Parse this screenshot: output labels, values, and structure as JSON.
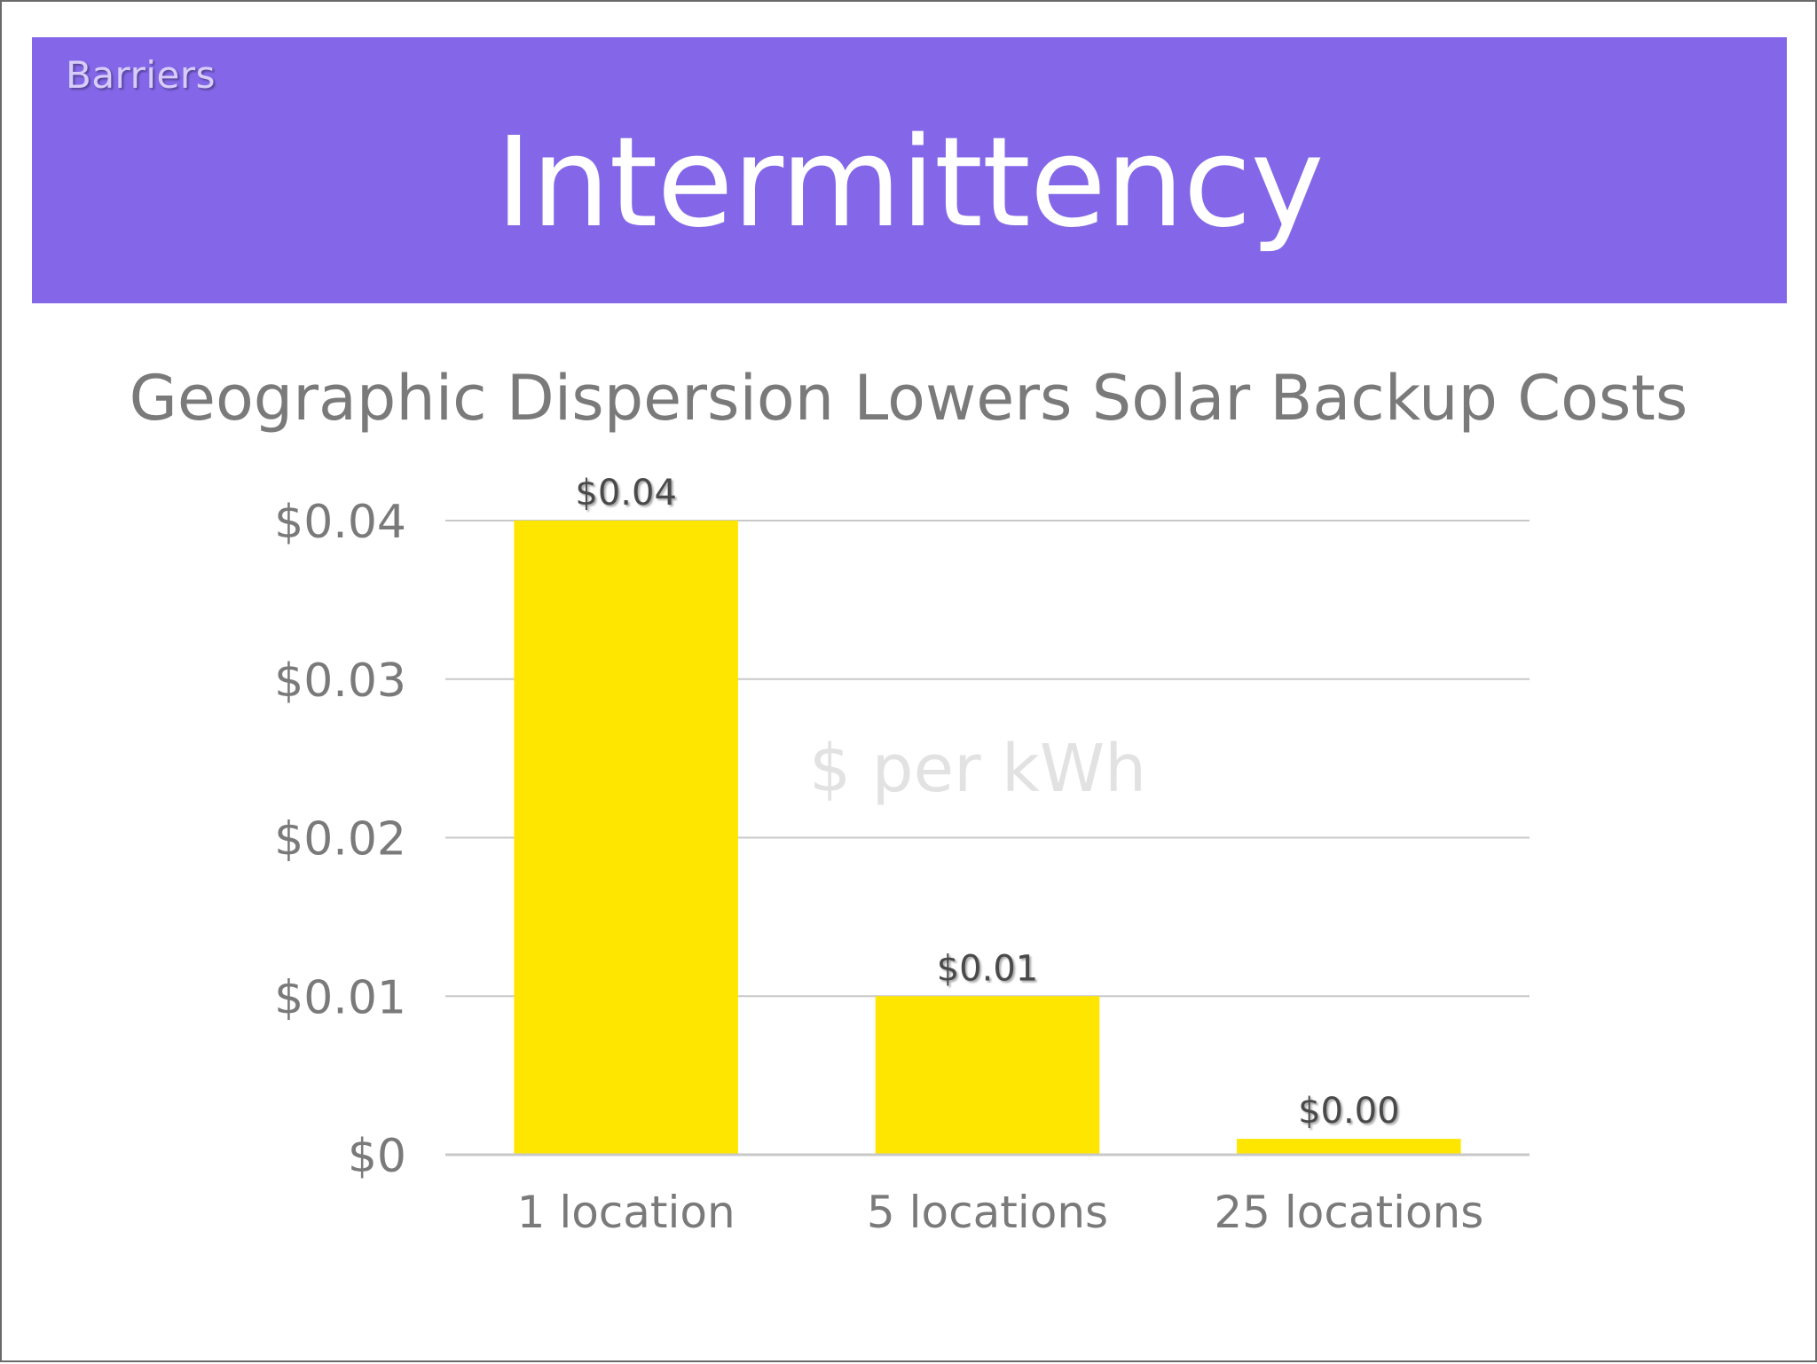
{
  "slide": {
    "section": "Barriers",
    "title": "Intermittency"
  },
  "colors": {
    "banner": "#8367e8",
    "bar": "#ffe600",
    "axis_text": "#7a7a7a",
    "grid": "#c8c8c8",
    "watermark": "#e2e2e2"
  },
  "chart_data": {
    "type": "bar",
    "title": "Geographic Dispersion Lowers Solar Backup Costs",
    "ylabel": "$ per kWh",
    "categories": [
      "1 location",
      "5 locations",
      "25 locations"
    ],
    "values": [
      0.04,
      0.01,
      0.001
    ],
    "data_labels": [
      "$0.04",
      "$0.01",
      "$0.00"
    ],
    "yticks": [
      0,
      0.01,
      0.02,
      0.03,
      0.04
    ],
    "ytick_labels": [
      "$0",
      "$0.01",
      "$0.02",
      "$0.03",
      "$0.04"
    ],
    "ylim": [
      0,
      0.04
    ],
    "grid": true,
    "legend": "none"
  }
}
